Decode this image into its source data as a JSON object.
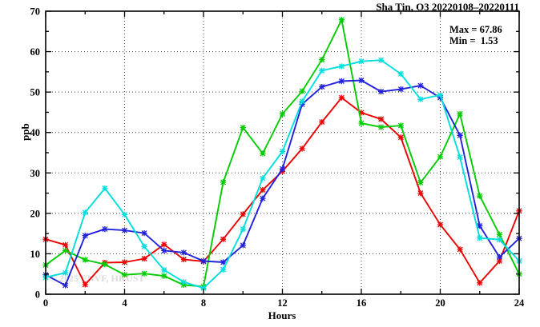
{
  "title": "Sha Tin, O3 20220108–20220111",
  "annotations": {
    "max_label": "Max = 67.86",
    "min_label": "Min =  1.53"
  },
  "watermark": "© 2025 ENVF, HKUST",
  "chart_data": {
    "type": "line",
    "title": "Sha Tin, O3 20220108–20220111",
    "xlabel": "Hours",
    "ylabel": "ppb",
    "xlim": [
      0,
      24
    ],
    "ylim": [
      0,
      70
    ],
    "grid": "dotted lines at major ticks",
    "legend_position": "none",
    "x_tick_labels": [
      "0",
      "4",
      "8",
      "12",
      "16",
      "20",
      "24"
    ],
    "y_tick_labels": [
      "0",
      "10",
      "20",
      "30",
      "40",
      "50",
      "60",
      "70"
    ],
    "x_major_ticks": [
      0,
      4,
      8,
      12,
      16,
      20,
      24
    ],
    "x_minor_ticks": [
      2,
      6,
      10,
      14,
      18,
      22
    ],
    "y_major_ticks": [
      0,
      10,
      20,
      30,
      40,
      50,
      60,
      70
    ],
    "y_minor_ticks": [
      5,
      15,
      25,
      35,
      45,
      55,
      65
    ],
    "max_value": 67.86,
    "min_value": 1.53,
    "x": [
      0,
      1,
      2,
      3,
      4,
      5,
      6,
      7,
      8,
      9,
      10,
      11,
      12,
      13,
      14,
      15,
      16,
      17,
      18,
      19,
      20,
      21,
      22,
      23,
      24
    ],
    "series": [
      {
        "name": "series-red",
        "color": "#ee0000",
        "values": [
          13.6,
          12.2,
          2.4,
          7.8,
          7.9,
          8.8,
          12.3,
          8.6,
          8.1,
          13.6,
          19.8,
          25.8,
          30.4,
          36.0,
          42.6,
          48.6,
          44.9,
          43.3,
          38.8,
          25.0,
          17.2,
          11.1,
          2.8,
          8.2,
          20.6
        ]
      },
      {
        "name": "series-green",
        "color": "#00cc00",
        "values": [
          7.2,
          10.8,
          8.5,
          7.4,
          4.8,
          5.1,
          4.5,
          2.3,
          1.9,
          27.7,
          41.2,
          34.8,
          44.6,
          50.2,
          58.0,
          67.86,
          42.3,
          41.3,
          41.7,
          27.6,
          34.0,
          44.6,
          24.3,
          14.8,
          5.0
        ]
      },
      {
        "name": "series-blue",
        "color": "#2222dd",
        "values": [
          4.8,
          2.2,
          14.5,
          16.1,
          15.8,
          15.1,
          10.8,
          10.3,
          8.2,
          7.9,
          12.1,
          23.7,
          31.0,
          47.0,
          51.3,
          52.7,
          52.9,
          50.1,
          50.7,
          51.6,
          48.6,
          39.3,
          16.9,
          9.2,
          13.8
        ]
      },
      {
        "name": "series-cyan",
        "color": "#00dede",
        "values": [
          4.2,
          5.3,
          20.2,
          26.2,
          19.7,
          11.8,
          6.0,
          3.0,
          1.53,
          6.1,
          16.1,
          28.7,
          35.3,
          47.7,
          55.3,
          56.4,
          57.6,
          57.9,
          54.5,
          48.2,
          49.3,
          33.9,
          13.9,
          13.5,
          8.2
        ]
      }
    ]
  }
}
